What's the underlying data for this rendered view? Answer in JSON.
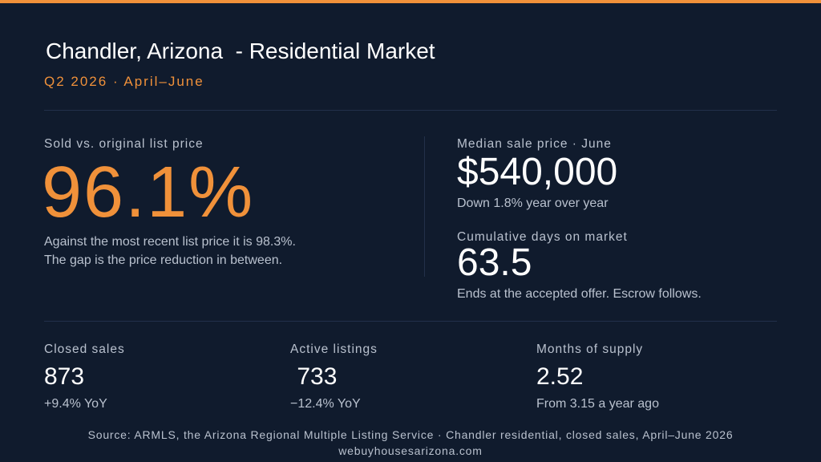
{
  "header": {
    "title": "Chandler, Arizona  - Residential Market",
    "subtitle": "Q2 2026 · April–June"
  },
  "left_panel": {
    "label": "Sold vs. original list price",
    "value": "96.1%",
    "note_line1": "Against the most recent list price it is 98.3%.",
    "note_line2": "The gap is the price reduction in between."
  },
  "right_panel": {
    "median": {
      "label": "Median sale price · June",
      "value": "$540,000",
      "note": "Down 1.8% year over year"
    },
    "dom": {
      "label": "Cumulative days on market",
      "value": "63.5",
      "note": "Ends at the accepted offer. Escrow follows."
    }
  },
  "stats": [
    {
      "label": "Closed sales",
      "value": "873",
      "change": "+9.4% YoY"
    },
    {
      "label": "Active listings",
      "value": " 733",
      "change": "−12.4% YoY"
    },
    {
      "label": "Months of supply",
      "value": "2.52",
      "change": "From 3.15 a year ago"
    }
  ],
  "footer": {
    "source": "Source: ARMLS, the Arizona Regional Multiple Listing Service ·  Chandler residential, closed sales, April–June 2026",
    "site": "webuyhousesarizona.com"
  },
  "colors": {
    "background": "#101b2d",
    "accent": "#f0913a",
    "muted_text": "#b9c1ce",
    "divider": "#22304a"
  }
}
